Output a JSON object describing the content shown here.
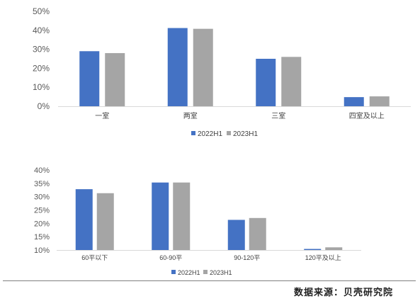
{
  "colors": {
    "series1": "#4472c4",
    "series2": "#a5a5a5",
    "axis": "#d9d9d9"
  },
  "chart_data": [
    {
      "type": "bar",
      "categories": [
        "一室",
        "两室",
        "三室",
        "四室及以上"
      ],
      "series": [
        {
          "name": "2022H1",
          "values": [
            29,
            41.2,
            25,
            4.8
          ]
        },
        {
          "name": "2023H1",
          "values": [
            28,
            40.8,
            26,
            5.2
          ]
        }
      ],
      "ylim": [
        0,
        50
      ],
      "yticks": [
        "0%",
        "10%",
        "20%",
        "30%",
        "40%",
        "50%"
      ],
      "legend": "bottom"
    },
    {
      "type": "bar",
      "categories": [
        "60平以下",
        "60-90平",
        "90-120平",
        "120平及以上"
      ],
      "series": [
        {
          "name": "2022H1",
          "values": [
            32.8,
            35.3,
            21.3,
            10.4
          ]
        },
        {
          "name": "2023H1",
          "values": [
            31.3,
            35.3,
            22,
            11
          ]
        }
      ],
      "ylim": [
        10,
        40
      ],
      "yticks": [
        "10%",
        "15%",
        "20%",
        "25%",
        "30%",
        "35%",
        "40%"
      ],
      "legend": "bottom"
    }
  ],
  "source_text": "数据来源：贝壳研究院"
}
